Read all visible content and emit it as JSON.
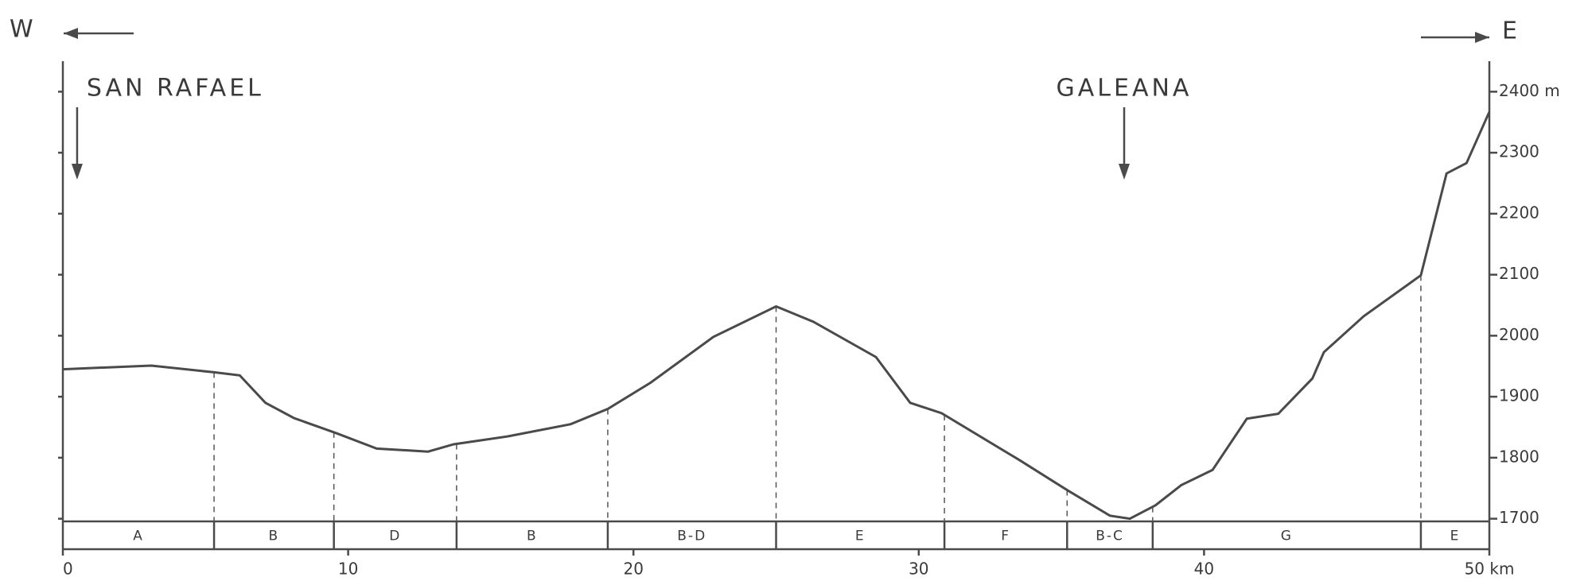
{
  "chart_data": {
    "type": "line",
    "direction_labels": [
      "W",
      "E"
    ],
    "x": [
      0,
      3.1,
      5.3,
      6.2,
      7.1,
      8.1,
      9.6,
      11,
      12.8,
      13.7,
      15.6,
      17.8,
      19.1,
      20.6,
      22.8,
      25,
      26.3,
      28.5,
      29.7,
      30.8,
      33.5,
      35.2,
      36.7,
      37.4,
      38.3,
      39.2,
      40.3,
      41.5,
      42.6,
      43.8,
      44.2,
      45.6,
      47.6,
      48.5,
      49.2,
      50
    ],
    "values": [
      1945,
      1951,
      1940,
      1935,
      1890,
      1865,
      1840,
      1815,
      1810,
      1822,
      1835,
      1855,
      1880,
      1923,
      1998,
      2048,
      2023,
      1965,
      1890,
      1873,
      1797,
      1747,
      1705,
      1700,
      1722,
      1755,
      1780,
      1864,
      1872,
      1930,
      1973,
      2032,
      2099,
      2266,
      2283,
      2367
    ],
    "color": "#4a4a4a",
    "xlim": [
      0,
      50
    ],
    "xticks": [
      0,
      10,
      20,
      30,
      40,
      {
        "value": 50,
        "label": "50 km"
      }
    ],
    "ylim": [
      1650,
      2450
    ],
    "yticks": [
      1700,
      1800,
      1900,
      2000,
      2100,
      2200,
      2300,
      {
        "value": 2400,
        "label": "2400 m"
      }
    ],
    "annotations": [
      {
        "text": "SAN RAFAEL",
        "x": 0.5
      },
      {
        "text": "GALEANA",
        "x": 37.2
      }
    ],
    "zones": {
      "labels": [
        "A",
        "B",
        "D",
        "B",
        "B-D",
        "E",
        "F",
        "B-C",
        "G",
        "E"
      ],
      "bounds": [
        0,
        5.3,
        9.5,
        13.8,
        19.1,
        25,
        30.9,
        35.2,
        38.2,
        47.6,
        50
      ]
    }
  }
}
